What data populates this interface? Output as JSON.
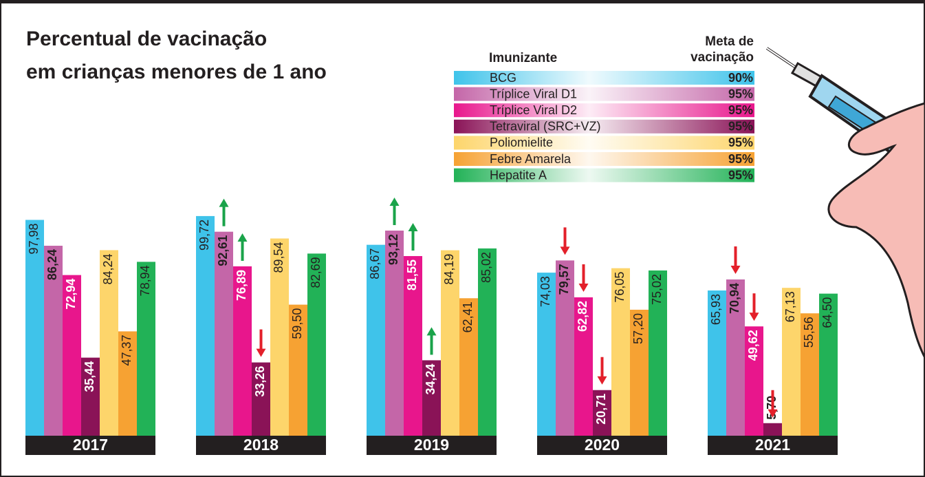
{
  "chart_data": {
    "type": "bar",
    "title": [
      "Percentual de vacinação",
      "em crianças menores de 1 ano"
    ],
    "legend_title": "Imunizante",
    "goal_header": [
      "Meta de",
      "vacinação"
    ],
    "categories": [
      "2017",
      "2018",
      "2019",
      "2020",
      "2021"
    ],
    "ylim": [
      0,
      100
    ],
    "series": [
      {
        "name": "BCG",
        "color": "#3fc3ea",
        "goal": 90,
        "goal_label": "90%",
        "label_color": "#231f20",
        "bold": false,
        "trend_arrows": false,
        "values": [
          97.98,
          99.72,
          86.67,
          74.03,
          65.93
        ],
        "value_labels": [
          "97,98",
          "99,72",
          "86,67",
          "74,03",
          "65,93"
        ]
      },
      {
        "name": "Tríplice Viral D1",
        "color": "#c466a8",
        "goal": 95,
        "goal_label": "95%",
        "label_color": "#231f20",
        "bold": true,
        "trend_arrows": true,
        "values": [
          86.24,
          92.61,
          93.12,
          79.57,
          70.94
        ],
        "value_labels": [
          "86,24",
          "92,61",
          "93,12",
          "79,57",
          "70,94"
        ]
      },
      {
        "name": "Tríplice Viral D2",
        "color": "#e8168c",
        "goal": 95,
        "goal_label": "95%",
        "label_color": "#ffffff",
        "bold": true,
        "trend_arrows": true,
        "values": [
          72.94,
          76.89,
          81.55,
          62.82,
          49.62
        ],
        "value_labels": [
          "72,94",
          "76,89",
          "81,55",
          "62,82",
          "49,62"
        ]
      },
      {
        "name": "Tetraviral (SRC+VZ)",
        "color": "#8a1357",
        "goal": 95,
        "goal_label": "95%",
        "label_color": "#ffffff",
        "bold": true,
        "trend_arrows": true,
        "values": [
          35.44,
          33.26,
          34.24,
          20.71,
          5.7
        ],
        "value_labels": [
          "35,44",
          "33,26",
          "34,24",
          "20,71",
          "5,70"
        ]
      },
      {
        "name": "Poliomielite",
        "color": "#fdd56b",
        "goal": 95,
        "goal_label": "95%",
        "label_color": "#231f20",
        "bold": false,
        "trend_arrows": false,
        "values": [
          84.24,
          89.54,
          84.19,
          76.05,
          67.13
        ],
        "value_labels": [
          "84,24",
          "89,54",
          "84,19",
          "76,05",
          "67,13"
        ]
      },
      {
        "name": "Febre Amarela",
        "color": "#f6a233",
        "goal": 95,
        "goal_label": "95%",
        "label_color": "#231f20",
        "bold": false,
        "trend_arrows": false,
        "values": [
          47.37,
          59.5,
          62.41,
          57.2,
          55.56
        ],
        "value_labels": [
          "47,37",
          "59,50",
          "62,41",
          "57,20",
          "55,56"
        ]
      },
      {
        "name": "Hepatite A",
        "color": "#22b257",
        "goal": 95,
        "goal_label": "95%",
        "label_color": "#231f20",
        "bold": false,
        "trend_arrows": false,
        "values": [
          78.94,
          82.69,
          85.02,
          75.02,
          64.5
        ],
        "value_labels": [
          "78,94",
          "82,69",
          "85,02",
          "75,02",
          "64,50"
        ]
      }
    ]
  }
}
